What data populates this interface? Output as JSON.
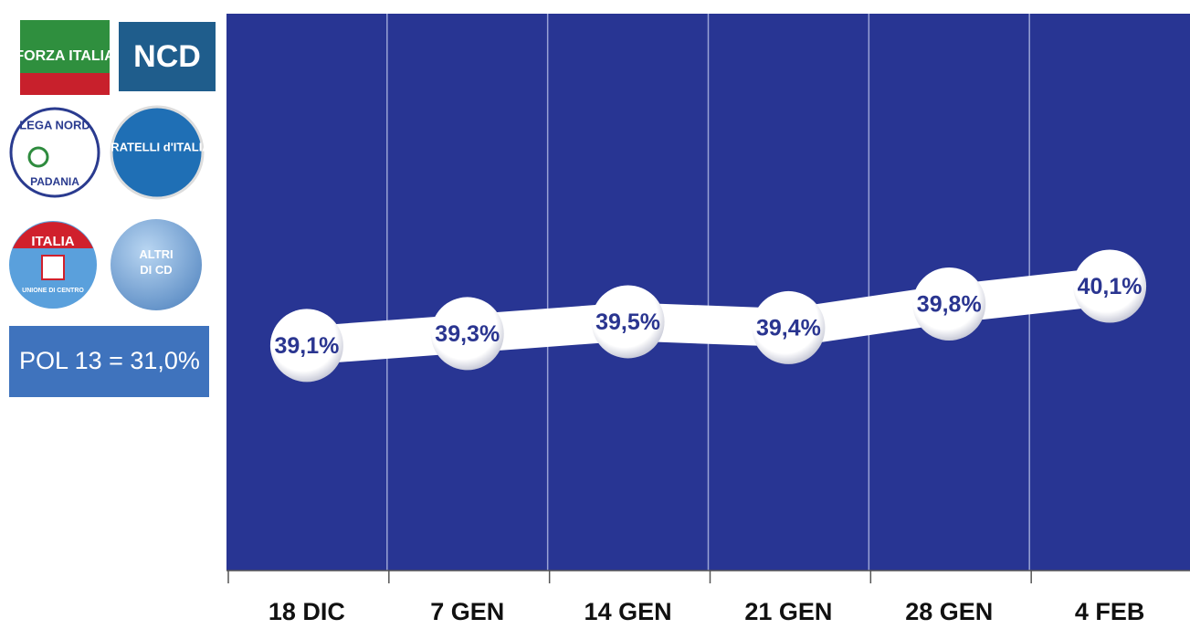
{
  "chart_data": {
    "type": "line",
    "categories": [
      "18 DIC",
      "7 GEN",
      "14 GEN",
      "21 GEN",
      "28 GEN",
      "4 FEB"
    ],
    "values": [
      39.1,
      39.3,
      39.5,
      39.4,
      39.8,
      40.1
    ],
    "value_labels": [
      "39,1%",
      "39,3%",
      "39,5%",
      "39,4%",
      "39,8%",
      "40,1%"
    ],
    "color": "#ffffff",
    "background": "#283593",
    "ylim": [
      35.3,
      44.7
    ]
  },
  "sidebar": {
    "logos": [
      "FORZA ITALIA",
      "NCD",
      "LEGA NORD",
      "PADANIA",
      "FRATELLI d'ITALIA",
      "ITALIA",
      "UNIONE DI CENTRO",
      "ALTRI DI CD"
    ],
    "box": "POL 13 = 31,0%"
  }
}
